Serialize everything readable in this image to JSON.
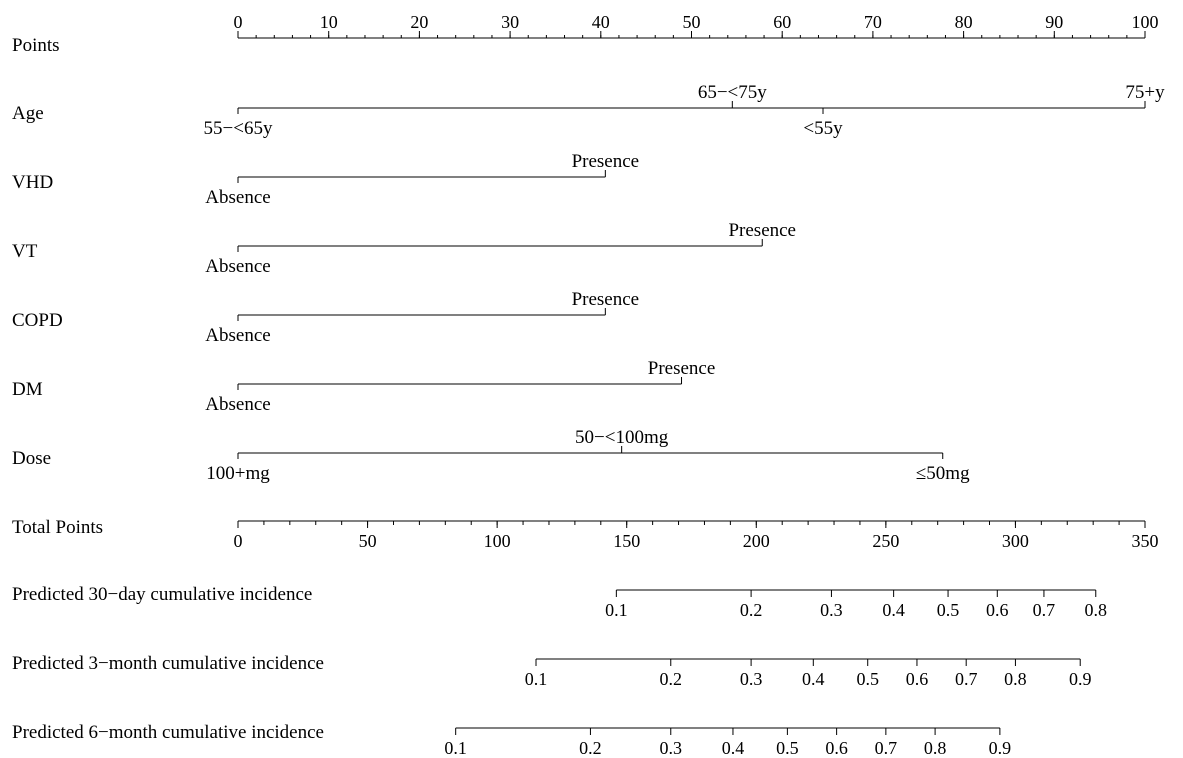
{
  "chart_data": {
    "type": "nomogram",
    "points_axis": {
      "label": "Points",
      "min": 0,
      "max": 100,
      "major_ticks": [
        0,
        10,
        20,
        30,
        40,
        50,
        60,
        70,
        80,
        90,
        100
      ],
      "minor_step": 2
    },
    "variables": [
      {
        "name": "Age",
        "line_range": [
          0,
          100
        ],
        "levels": [
          {
            "label": "55−<65y",
            "points": 0,
            "pos": "below",
            "tick": true
          },
          {
            "label": "65−<75y",
            "points": 54.5,
            "pos": "above",
            "tick": true
          },
          {
            "label": "<55y",
            "points": 64.5,
            "pos": "below",
            "tick": true
          },
          {
            "label": "75+y",
            "points": 100,
            "pos": "above",
            "tick": true
          }
        ]
      },
      {
        "name": "VHD",
        "line_range": [
          0,
          40.5
        ],
        "levels": [
          {
            "label": "Absence",
            "points": 0,
            "pos": "below",
            "tick": true
          },
          {
            "label": "Presence",
            "points": 40.5,
            "pos": "above",
            "tick": true
          }
        ]
      },
      {
        "name": "VT",
        "line_range": [
          0,
          57.8
        ],
        "levels": [
          {
            "label": "Absence",
            "points": 0,
            "pos": "below",
            "tick": true
          },
          {
            "label": "Presence",
            "points": 57.8,
            "pos": "above",
            "tick": true
          }
        ]
      },
      {
        "name": "COPD",
        "line_range": [
          0,
          40.5
        ],
        "levels": [
          {
            "label": "Absence",
            "points": 0,
            "pos": "below",
            "tick": true
          },
          {
            "label": "Presence",
            "points": 40.5,
            "pos": "above",
            "tick": true
          }
        ]
      },
      {
        "name": "DM",
        "line_range": [
          0,
          48.9
        ],
        "levels": [
          {
            "label": "Absence",
            "points": 0,
            "pos": "below",
            "tick": true
          },
          {
            "label": "Presence",
            "points": 48.9,
            "pos": "above",
            "tick": true
          }
        ]
      },
      {
        "name": "Dose",
        "line_range": [
          0,
          77.7
        ],
        "levels": [
          {
            "label": "100+mg",
            "points": 0,
            "pos": "below",
            "tick": true
          },
          {
            "label": "50−<100mg",
            "points": 42.3,
            "pos": "above",
            "tick": true
          },
          {
            "label": "≤50mg",
            "points": 77.7,
            "pos": "below",
            "tick": true
          }
        ]
      }
    ],
    "total_points_axis": {
      "label": "Total Points",
      "min": 0,
      "max": 350,
      "major_ticks": [
        0,
        50,
        100,
        150,
        200,
        250,
        300,
        350
      ],
      "minor_step": 10
    },
    "probability_axes": [
      {
        "label": "Predicted 30−day cumulative incidence",
        "ticks": [
          {
            "value": "0.1",
            "total_points": 146
          },
          {
            "value": "0.2",
            "total_points": 198
          },
          {
            "value": "0.3",
            "total_points": 229
          },
          {
            "value": "0.4",
            "total_points": 253
          },
          {
            "value": "0.5",
            "total_points": 274
          },
          {
            "value": "0.6",
            "total_points": 293
          },
          {
            "value": "0.7",
            "total_points": 311
          },
          {
            "value": "0.8",
            "total_points": 331
          }
        ]
      },
      {
        "label": "Predicted 3−month cumulative incidence",
        "ticks": [
          {
            "value": "0.1",
            "total_points": 115
          },
          {
            "value": "0.2",
            "total_points": 167
          },
          {
            "value": "0.3",
            "total_points": 198
          },
          {
            "value": "0.4",
            "total_points": 222
          },
          {
            "value": "0.5",
            "total_points": 243
          },
          {
            "value": "0.6",
            "total_points": 262
          },
          {
            "value": "0.7",
            "total_points": 281
          },
          {
            "value": "0.8",
            "total_points": 300
          },
          {
            "value": "0.9",
            "total_points": 325
          }
        ]
      },
      {
        "label": "Predicted 6−month cumulative incidence",
        "ticks": [
          {
            "value": "0.1",
            "total_points": 84
          },
          {
            "value": "0.2",
            "total_points": 136
          },
          {
            "value": "0.3",
            "total_points": 167
          },
          {
            "value": "0.4",
            "total_points": 191
          },
          {
            "value": "0.5",
            "total_points": 212
          },
          {
            "value": "0.6",
            "total_points": 231
          },
          {
            "value": "0.7",
            "total_points": 250
          },
          {
            "value": "0.8",
            "total_points": 269
          },
          {
            "value": "0.9",
            "total_points": 294
          }
        ]
      }
    ]
  }
}
